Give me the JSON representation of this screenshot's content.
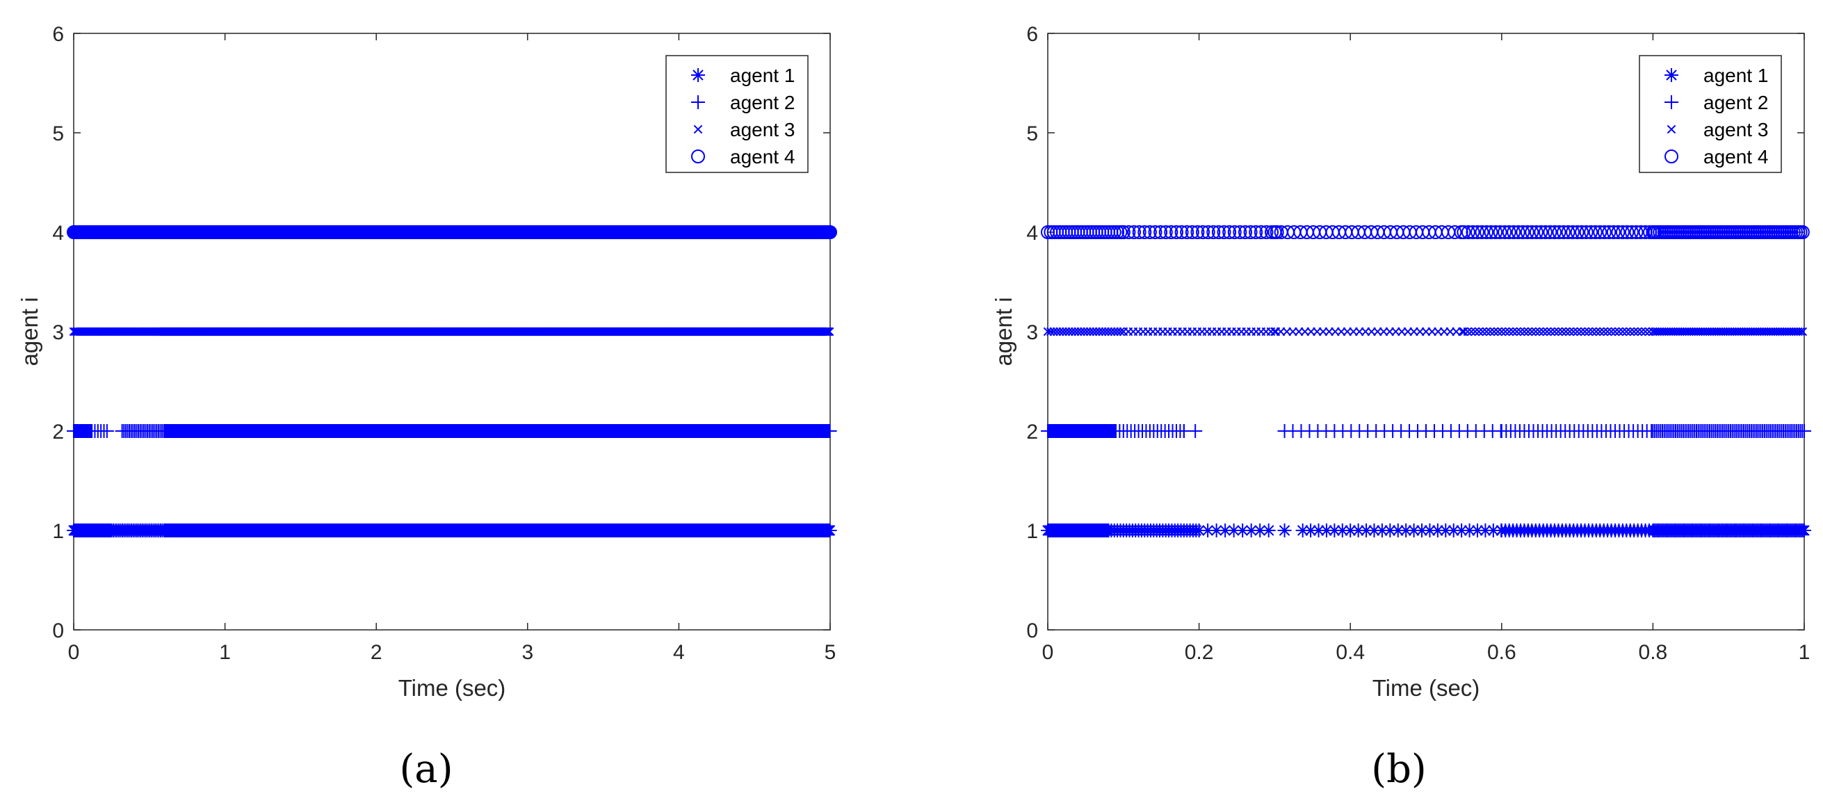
{
  "figure": {
    "captions": [
      "(a)",
      "(b)"
    ]
  },
  "chart_data": [
    {
      "type": "scatter",
      "title": "",
      "xlabel": "Time (sec)",
      "ylabel": "agent i",
      "xlim": [
        0,
        5
      ],
      "ylim": [
        0,
        6
      ],
      "xticks": [
        "0",
        "1",
        "2",
        "3",
        "4",
        "5"
      ],
      "yticks": [
        "0",
        "1",
        "2",
        "3",
        "4",
        "5",
        "6"
      ],
      "grid": false,
      "legend_position": "top-right",
      "color": "#0000ff",
      "series": [
        {
          "name": "agent 1",
          "marker": "asterisk",
          "y": 1,
          "x_segments": [
            {
              "from": 0.0,
              "to": 0.25,
              "step": 0.005
            },
            {
              "from": 0.25,
              "to": 0.6,
              "step": 0.012
            },
            {
              "from": 0.6,
              "to": 5.0,
              "step": 0.006
            }
          ]
        },
        {
          "name": "agent 2",
          "marker": "plus",
          "y": 2,
          "x_segments": [
            {
              "from": 0.0,
              "to": 0.12,
              "step": 0.006
            },
            {
              "from": 0.12,
              "to": 0.22,
              "step": 0.02
            },
            {
              "from": 0.32,
              "to": 0.6,
              "step": 0.012
            },
            {
              "from": 0.6,
              "to": 5.0,
              "step": 0.006
            }
          ]
        },
        {
          "name": "agent 3",
          "marker": "cross",
          "y": 3,
          "x_segments": [
            {
              "from": 0.0,
              "to": 0.55,
              "step": 0.01
            },
            {
              "from": 0.55,
              "to": 5.0,
              "step": 0.006
            }
          ]
        },
        {
          "name": "agent 4",
          "marker": "circle",
          "y": 4,
          "x_segments": [
            {
              "from": 0.0,
              "to": 5.0,
              "step": 0.008
            }
          ]
        }
      ]
    },
    {
      "type": "scatter",
      "title": "",
      "xlabel": "Time (sec)",
      "ylabel": "agent i",
      "xlim": [
        0,
        1
      ],
      "ylim": [
        0,
        6
      ],
      "xticks": [
        "0",
        "0.2",
        "0.4",
        "0.6",
        "0.8",
        "1"
      ],
      "yticks": [
        "0",
        "1",
        "2",
        "3",
        "4",
        "5",
        "6"
      ],
      "grid": false,
      "legend_position": "top-right",
      "color": "#0000ff",
      "series": [
        {
          "name": "agent 1",
          "marker": "asterisk",
          "y": 1,
          "x_segments": [
            {
              "from": 0.0,
              "to": 0.08,
              "step": 0.0012
            },
            {
              "from": 0.08,
              "to": 0.2,
              "step": 0.004
            },
            {
              "from": 0.2,
              "to": 0.29,
              "step": 0.0115
            },
            {
              "from": 0.313,
              "to": 0.313,
              "step": 1
            },
            {
              "from": 0.337,
              "to": 0.6,
              "step": 0.0105
            },
            {
              "from": 0.6,
              "to": 0.8,
              "step": 0.005
            },
            {
              "from": 0.8,
              "to": 1.0,
              "step": 0.002
            }
          ]
        },
        {
          "name": "agent 2",
          "marker": "plus",
          "y": 2,
          "x_segments": [
            {
              "from": 0.0,
              "to": 0.09,
              "step": 0.0012
            },
            {
              "from": 0.09,
              "to": 0.18,
              "step": 0.005
            },
            {
              "from": 0.18,
              "to": 0.2,
              "step": 0.015
            },
            {
              "from": 0.313,
              "to": 0.6,
              "step": 0.011
            },
            {
              "from": 0.6,
              "to": 0.8,
              "step": 0.006
            },
            {
              "from": 0.8,
              "to": 1.0,
              "step": 0.0025
            }
          ]
        },
        {
          "name": "agent 3",
          "marker": "cross",
          "y": 3,
          "x_segments": [
            {
              "from": 0.0,
              "to": 0.1,
              "step": 0.004
            },
            {
              "from": 0.1,
              "to": 0.3,
              "step": 0.0065
            },
            {
              "from": 0.3,
              "to": 0.55,
              "step": 0.008
            },
            {
              "from": 0.55,
              "to": 0.8,
              "step": 0.005
            },
            {
              "from": 0.8,
              "to": 1.0,
              "step": 0.003
            }
          ]
        },
        {
          "name": "agent 4",
          "marker": "circle",
          "y": 4,
          "x_segments": [
            {
              "from": 0.0,
              "to": 0.1,
              "step": 0.004
            },
            {
              "from": 0.1,
              "to": 0.3,
              "step": 0.007
            },
            {
              "from": 0.3,
              "to": 0.55,
              "step": 0.0085
            },
            {
              "from": 0.55,
              "to": 0.8,
              "step": 0.006
            },
            {
              "from": 0.8,
              "to": 1.0,
              "step": 0.003
            }
          ]
        }
      ]
    }
  ]
}
